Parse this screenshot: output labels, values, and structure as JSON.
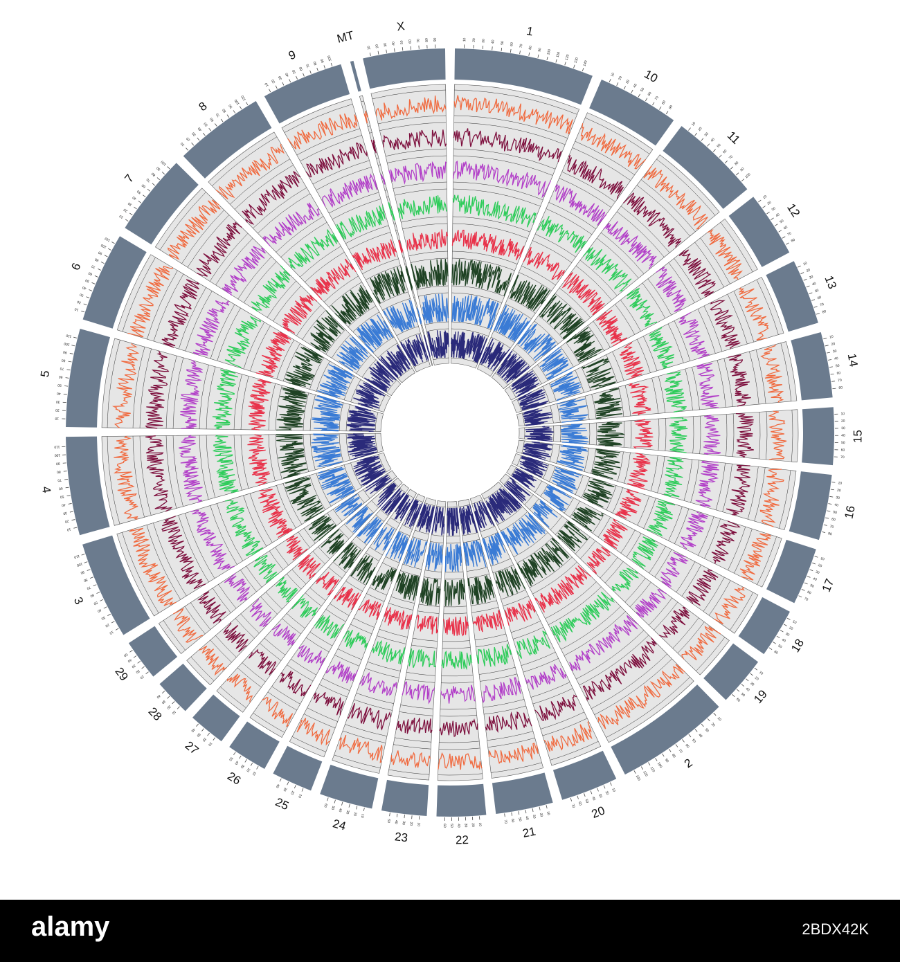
{
  "figure": {
    "type": "circos-genome-plot",
    "colors": {
      "ideogram": "#6b7b8e",
      "panel_background": "#e6e6e6",
      "tracks": [
        "#f06a3f",
        "#7d0f3d",
        "#b23fc8",
        "#2ecc5a",
        "#e8324a",
        "#1f4224",
        "#3a7bd5",
        "#2a2a7a"
      ]
    },
    "chromosomes": [
      {
        "label": "1",
        "ticks": [
          "10",
          "20",
          "30",
          "40",
          "50",
          "60",
          "70",
          "80",
          "90",
          "100",
          "110",
          "120",
          "130",
          "140"
        ]
      },
      {
        "label": "10",
        "ticks": [
          "10",
          "20",
          "30",
          "40",
          "50",
          "60",
          "70",
          "80",
          "90"
        ]
      },
      {
        "label": "11",
        "ticks": [
          "10",
          "20",
          "30",
          "40",
          "50",
          "60",
          "70",
          "80",
          "90",
          "100"
        ]
      },
      {
        "label": "12",
        "ticks": [
          "10",
          "20",
          "30",
          "40",
          "50",
          "60",
          "70",
          "80"
        ]
      },
      {
        "label": "13",
        "ticks": [
          "10",
          "20",
          "30",
          "40",
          "50",
          "60",
          "70",
          "80"
        ]
      },
      {
        "label": "14",
        "ticks": [
          "10",
          "20",
          "30",
          "40",
          "50",
          "60",
          "70",
          "80"
        ]
      },
      {
        "label": "15",
        "ticks": [
          "10",
          "20",
          "30",
          "40",
          "50",
          "60",
          "70"
        ]
      },
      {
        "label": "16",
        "ticks": [
          "10",
          "20",
          "30",
          "40",
          "50",
          "60",
          "70",
          "80"
        ]
      },
      {
        "label": "17",
        "ticks": [
          "10",
          "20",
          "30",
          "40",
          "50",
          "60",
          "70"
        ]
      },
      {
        "label": "18",
        "ticks": [
          "10",
          "20",
          "30",
          "40",
          "50",
          "60"
        ]
      },
      {
        "label": "19",
        "ticks": [
          "10",
          "20",
          "30",
          "40",
          "50",
          "60"
        ]
      },
      {
        "label": "2",
        "ticks": [
          "10",
          "20",
          "30",
          "40",
          "50",
          "60",
          "70",
          "80",
          "90",
          "100",
          "110",
          "120",
          "130"
        ]
      },
      {
        "label": "20",
        "ticks": [
          "10",
          "20",
          "30",
          "40",
          "50",
          "60",
          "70"
        ]
      },
      {
        "label": "21",
        "ticks": [
          "10",
          "20",
          "30",
          "40",
          "50",
          "60",
          "70"
        ]
      },
      {
        "label": "22",
        "ticks": [
          "10",
          "20",
          "30",
          "40",
          "50",
          "60"
        ]
      },
      {
        "label": "23",
        "ticks": [
          "10",
          "20",
          "30",
          "40",
          "50"
        ]
      },
      {
        "label": "24",
        "ticks": [
          "10",
          "20",
          "30",
          "40",
          "50",
          "60"
        ]
      },
      {
        "label": "25",
        "ticks": [
          "10",
          "20",
          "30",
          "40"
        ]
      },
      {
        "label": "26",
        "ticks": [
          "10",
          "20",
          "30",
          "40",
          "50"
        ]
      },
      {
        "label": "27",
        "ticks": [
          "10",
          "20",
          "30",
          "40"
        ]
      },
      {
        "label": "28",
        "ticks": [
          "10",
          "20",
          "30",
          "40"
        ]
      },
      {
        "label": "29",
        "ticks": [
          "10",
          "20",
          "30",
          "40",
          "50"
        ]
      },
      {
        "label": "3",
        "ticks": [
          "10",
          "20",
          "30",
          "40",
          "50",
          "60",
          "70",
          "80",
          "90",
          "100",
          "110"
        ]
      },
      {
        "label": "4",
        "ticks": [
          "10",
          "20",
          "30",
          "40",
          "50",
          "60",
          "70",
          "80",
          "90",
          "100",
          "110"
        ]
      },
      {
        "label": "5",
        "ticks": [
          "10",
          "20",
          "30",
          "40",
          "50",
          "60",
          "70",
          "80",
          "90",
          "100",
          "110"
        ]
      },
      {
        "label": "6",
        "ticks": [
          "10",
          "20",
          "30",
          "40",
          "50",
          "60",
          "70",
          "80",
          "90",
          "100",
          "110"
        ]
      },
      {
        "label": "7",
        "ticks": [
          "10",
          "20",
          "30",
          "40",
          "50",
          "60",
          "70",
          "80",
          "90",
          "100"
        ]
      },
      {
        "label": "8",
        "ticks": [
          "10",
          "20",
          "30",
          "40",
          "50",
          "60",
          "70",
          "80",
          "90",
          "100",
          "110"
        ]
      },
      {
        "label": "9",
        "ticks": [
          "10",
          "20",
          "30",
          "40",
          "50",
          "60",
          "70",
          "80",
          "90",
          "100"
        ]
      },
      {
        "label": "MT",
        "ticks": []
      },
      {
        "label": "X",
        "ticks": [
          "10",
          "20",
          "30",
          "40",
          "50",
          "60",
          "70",
          "80",
          "90"
        ]
      }
    ]
  },
  "watermark": {
    "logo": "alamy",
    "image_id": "2BDX42K"
  }
}
